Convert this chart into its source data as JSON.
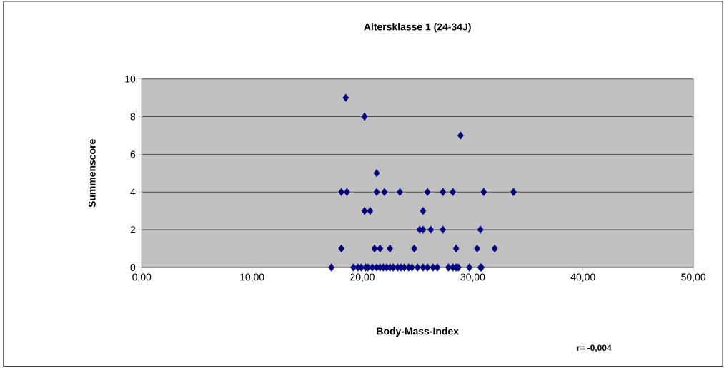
{
  "chart_data": {
    "type": "scatter",
    "title": "Altersklasse 1 (24-34J)",
    "xlabel": "Body-Mass-Index",
    "ylabel": "Summenscore",
    "annotations": [
      "r= -0,004"
    ],
    "series": [
      {
        "color": "#000080",
        "x": [
          18.5,
          20.2,
          28.9,
          21.3,
          18.1,
          18.6,
          21.3,
          22.0,
          23.4,
          25.9,
          27.3,
          28.2,
          31.0,
          33.7,
          20.2,
          20.7,
          25.5,
          25.2,
          25.5,
          26.2,
          27.3,
          30.7,
          18.1,
          21.1,
          21.6,
          22.5,
          24.7,
          28.5,
          30.4,
          32.0,
          17.2,
          19.2,
          19.6,
          19.9,
          20.3,
          20.5,
          20.9,
          21.3,
          21.6,
          21.9,
          22.2,
          22.5,
          22.8,
          23.2,
          23.5,
          23.8,
          24.2,
          24.5,
          25.0,
          25.5,
          25.9,
          26.4,
          26.8,
          27.8,
          28.2,
          28.5,
          28.7,
          29.7,
          30.7,
          30.8
        ],
        "values": [
          9,
          8,
          7,
          5,
          4,
          4,
          4,
          4,
          4,
          4,
          4,
          4,
          4,
          4,
          3,
          3,
          3,
          2,
          2,
          2,
          2,
          2,
          1,
          1,
          1,
          1,
          1,
          1,
          1,
          1,
          0,
          0,
          0,
          0,
          0,
          0,
          0,
          0,
          0,
          0,
          0,
          0,
          0,
          0,
          0,
          0,
          0,
          0,
          0,
          0,
          0,
          0,
          0,
          0,
          0,
          0,
          0,
          0,
          0,
          0
        ]
      }
    ],
    "xlim": [
      0,
      50
    ],
    "xticks": [
      {
        "value": 0,
        "label": "0,00"
      },
      {
        "value": 10,
        "label": "10,00"
      },
      {
        "value": 20,
        "label": "20,00"
      },
      {
        "value": 30,
        "label": "30,00"
      },
      {
        "value": 40,
        "label": "40,00"
      },
      {
        "value": 50,
        "label": "50,00"
      }
    ],
    "ylim": [
      0,
      10
    ],
    "yticks": [
      0,
      2,
      4,
      6,
      8,
      10
    ],
    "grid": "y",
    "marker": "diamond"
  }
}
